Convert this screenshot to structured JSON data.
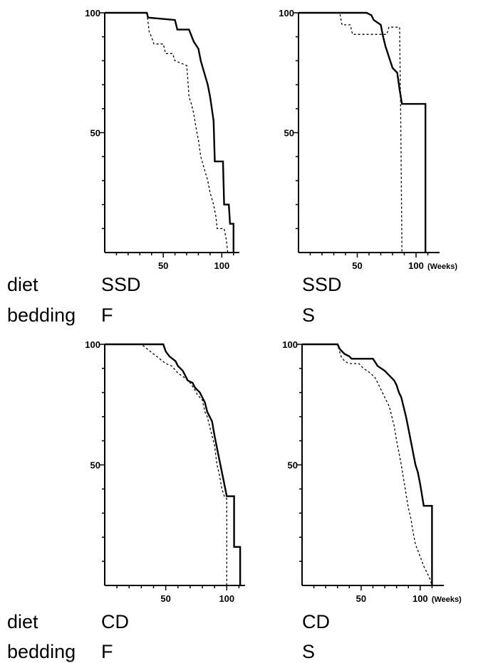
{
  "figure": {
    "row_labels": {
      "diet": "diet",
      "bedding": "bedding"
    },
    "x_unit": "(Weeks)"
  },
  "panels": [
    {
      "diet": "SSD",
      "bedding": "F"
    },
    {
      "diet": "SSD",
      "bedding": "S"
    },
    {
      "diet": "CD",
      "bedding": "F"
    },
    {
      "diet": "CD",
      "bedding": "S"
    }
  ],
  "chart_data": [
    {
      "type": "line",
      "step": true,
      "xlim": [
        0,
        115
      ],
      "ylim": [
        0,
        100
      ],
      "x_ticks": [
        50,
        100
      ],
      "y_ticks": [
        50,
        100
      ],
      "show_x_unit": false,
      "series": [
        {
          "style": "solid",
          "points": [
            [
              0,
              100
            ],
            [
              36,
              100
            ],
            [
              37,
              98
            ],
            [
              60,
              97
            ],
            [
              62,
              93
            ],
            [
              72,
              93
            ],
            [
              76,
              88
            ],
            [
              80,
              85
            ],
            [
              82,
              80
            ],
            [
              85,
              75
            ],
            [
              88,
              70
            ],
            [
              90,
              65
            ],
            [
              93,
              55
            ],
            [
              94,
              38
            ],
            [
              101,
              38
            ],
            [
              102,
              20
            ],
            [
              106,
              20
            ],
            [
              107,
              12
            ],
            [
              110,
              12
            ],
            [
              110,
              0
            ]
          ]
        },
        {
          "style": "dashed",
          "points": [
            [
              0,
              100
            ],
            [
              36,
              100
            ],
            [
              38,
              92
            ],
            [
              40,
              90
            ],
            [
              42,
              87
            ],
            [
              50,
              87
            ],
            [
              52,
              83
            ],
            [
              58,
              83
            ],
            [
              60,
              80
            ],
            [
              70,
              78
            ],
            [
              71,
              72
            ],
            [
              72,
              65
            ],
            [
              74,
              62
            ],
            [
              76,
              58
            ],
            [
              78,
              52
            ],
            [
              80,
              47
            ],
            [
              82,
              40
            ],
            [
              85,
              35
            ],
            [
              88,
              30
            ],
            [
              90,
              25
            ],
            [
              93,
              20
            ],
            [
              95,
              15
            ],
            [
              96,
              10
            ],
            [
              102,
              10
            ],
            [
              104,
              5
            ],
            [
              105,
              0
            ]
          ]
        }
      ]
    },
    {
      "type": "line",
      "step": true,
      "xlim": [
        0,
        120
      ],
      "ylim": [
        0,
        100
      ],
      "x_ticks": [
        50,
        100
      ],
      "y_ticks": [
        50,
        100
      ],
      "show_x_unit": true,
      "series": [
        {
          "style": "solid",
          "points": [
            [
              0,
              100
            ],
            [
              58,
              100
            ],
            [
              62,
              99
            ],
            [
              64,
              97
            ],
            [
              70,
              95
            ],
            [
              72,
              90
            ],
            [
              74,
              86
            ],
            [
              76,
              83
            ],
            [
              78,
              80
            ],
            [
              80,
              77
            ],
            [
              84,
              75
            ],
            [
              86,
              68
            ],
            [
              88,
              62
            ],
            [
              108,
              62
            ],
            [
              108,
              0
            ]
          ]
        },
        {
          "style": "dashed",
          "points": [
            [
              0,
              100
            ],
            [
              35,
              100
            ],
            [
              37,
              95
            ],
            [
              44,
              95
            ],
            [
              46,
              91
            ],
            [
              75,
              91
            ],
            [
              77,
              94
            ],
            [
              86,
              94
            ],
            [
              87,
              56
            ],
            [
              88,
              0
            ]
          ]
        }
      ]
    },
    {
      "type": "line",
      "step": true,
      "xlim": [
        0,
        115
      ],
      "ylim": [
        0,
        100
      ],
      "x_ticks": [
        50,
        100
      ],
      "y_ticks": [
        50,
        100
      ],
      "show_x_unit": false,
      "series": [
        {
          "style": "solid",
          "points": [
            [
              0,
              100
            ],
            [
              48,
              100
            ],
            [
              50,
              97
            ],
            [
              53,
              95
            ],
            [
              58,
              93
            ],
            [
              60,
              91
            ],
            [
              64,
              89
            ],
            [
              66,
              87
            ],
            [
              68,
              85
            ],
            [
              72,
              84
            ],
            [
              74,
              82
            ],
            [
              78,
              80
            ],
            [
              80,
              78
            ],
            [
              82,
              76
            ],
            [
              84,
              72
            ],
            [
              86,
              70
            ],
            [
              88,
              68
            ],
            [
              90,
              62
            ],
            [
              92,
              57
            ],
            [
              94,
              52
            ],
            [
              96,
              47
            ],
            [
              98,
              42
            ],
            [
              100,
              37
            ],
            [
              106,
              37
            ],
            [
              106,
              16
            ],
            [
              111,
              16
            ],
            [
              111,
              0
            ]
          ]
        },
        {
          "style": "dashed",
          "points": [
            [
              0,
              100
            ],
            [
              30,
              100
            ],
            [
              35,
              98
            ],
            [
              40,
              96
            ],
            [
              45,
              94
            ],
            [
              50,
              92
            ],
            [
              55,
              91
            ],
            [
              60,
              88
            ],
            [
              66,
              86
            ],
            [
              70,
              84
            ],
            [
              74,
              81
            ],
            [
              76,
              79
            ],
            [
              80,
              77
            ],
            [
              82,
              72
            ],
            [
              84,
              70
            ],
            [
              86,
              66
            ],
            [
              88,
              62
            ],
            [
              90,
              58
            ],
            [
              92,
              50
            ],
            [
              94,
              46
            ],
            [
              96,
              40
            ],
            [
              98,
              37
            ],
            [
              100,
              36
            ],
            [
              100,
              0
            ]
          ]
        }
      ]
    },
    {
      "type": "line",
      "step": true,
      "xlim": [
        0,
        120
      ],
      "ylim": [
        0,
        100
      ],
      "x_ticks": [
        50,
        100
      ],
      "y_ticks": [
        50,
        100
      ],
      "show_x_unit": true,
      "series": [
        {
          "style": "solid",
          "points": [
            [
              0,
              100
            ],
            [
              30,
              100
            ],
            [
              32,
              98
            ],
            [
              36,
              96
            ],
            [
              40,
              95
            ],
            [
              42,
              94
            ],
            [
              60,
              94
            ],
            [
              64,
              91
            ],
            [
              70,
              89
            ],
            [
              74,
              87
            ],
            [
              78,
              85
            ],
            [
              80,
              83
            ],
            [
              82,
              80
            ],
            [
              84,
              78
            ],
            [
              86,
              74
            ],
            [
              88,
              70
            ],
            [
              90,
              65
            ],
            [
              92,
              60
            ],
            [
              94,
              55
            ],
            [
              96,
              50
            ],
            [
              98,
              47
            ],
            [
              100,
              42
            ],
            [
              103,
              33
            ],
            [
              110,
              33
            ],
            [
              110,
              0
            ]
          ]
        },
        {
          "style": "dashed",
          "points": [
            [
              0,
              100
            ],
            [
              30,
              100
            ],
            [
              33,
              95
            ],
            [
              36,
              93
            ],
            [
              40,
              92
            ],
            [
              48,
              92
            ],
            [
              52,
              90
            ],
            [
              58,
              88
            ],
            [
              62,
              86
            ],
            [
              64,
              84
            ],
            [
              68,
              80
            ],
            [
              72,
              76
            ],
            [
              74,
              74
            ],
            [
              76,
              70
            ],
            [
              78,
              66
            ],
            [
              80,
              60
            ],
            [
              82,
              55
            ],
            [
              84,
              50
            ],
            [
              86,
              44
            ],
            [
              88,
              38
            ],
            [
              90,
              32
            ],
            [
              92,
              28
            ],
            [
              94,
              22
            ],
            [
              96,
              17
            ],
            [
              100,
              12
            ],
            [
              103,
              8
            ],
            [
              106,
              5
            ],
            [
              108,
              3
            ],
            [
              110,
              0
            ]
          ]
        }
      ]
    }
  ]
}
